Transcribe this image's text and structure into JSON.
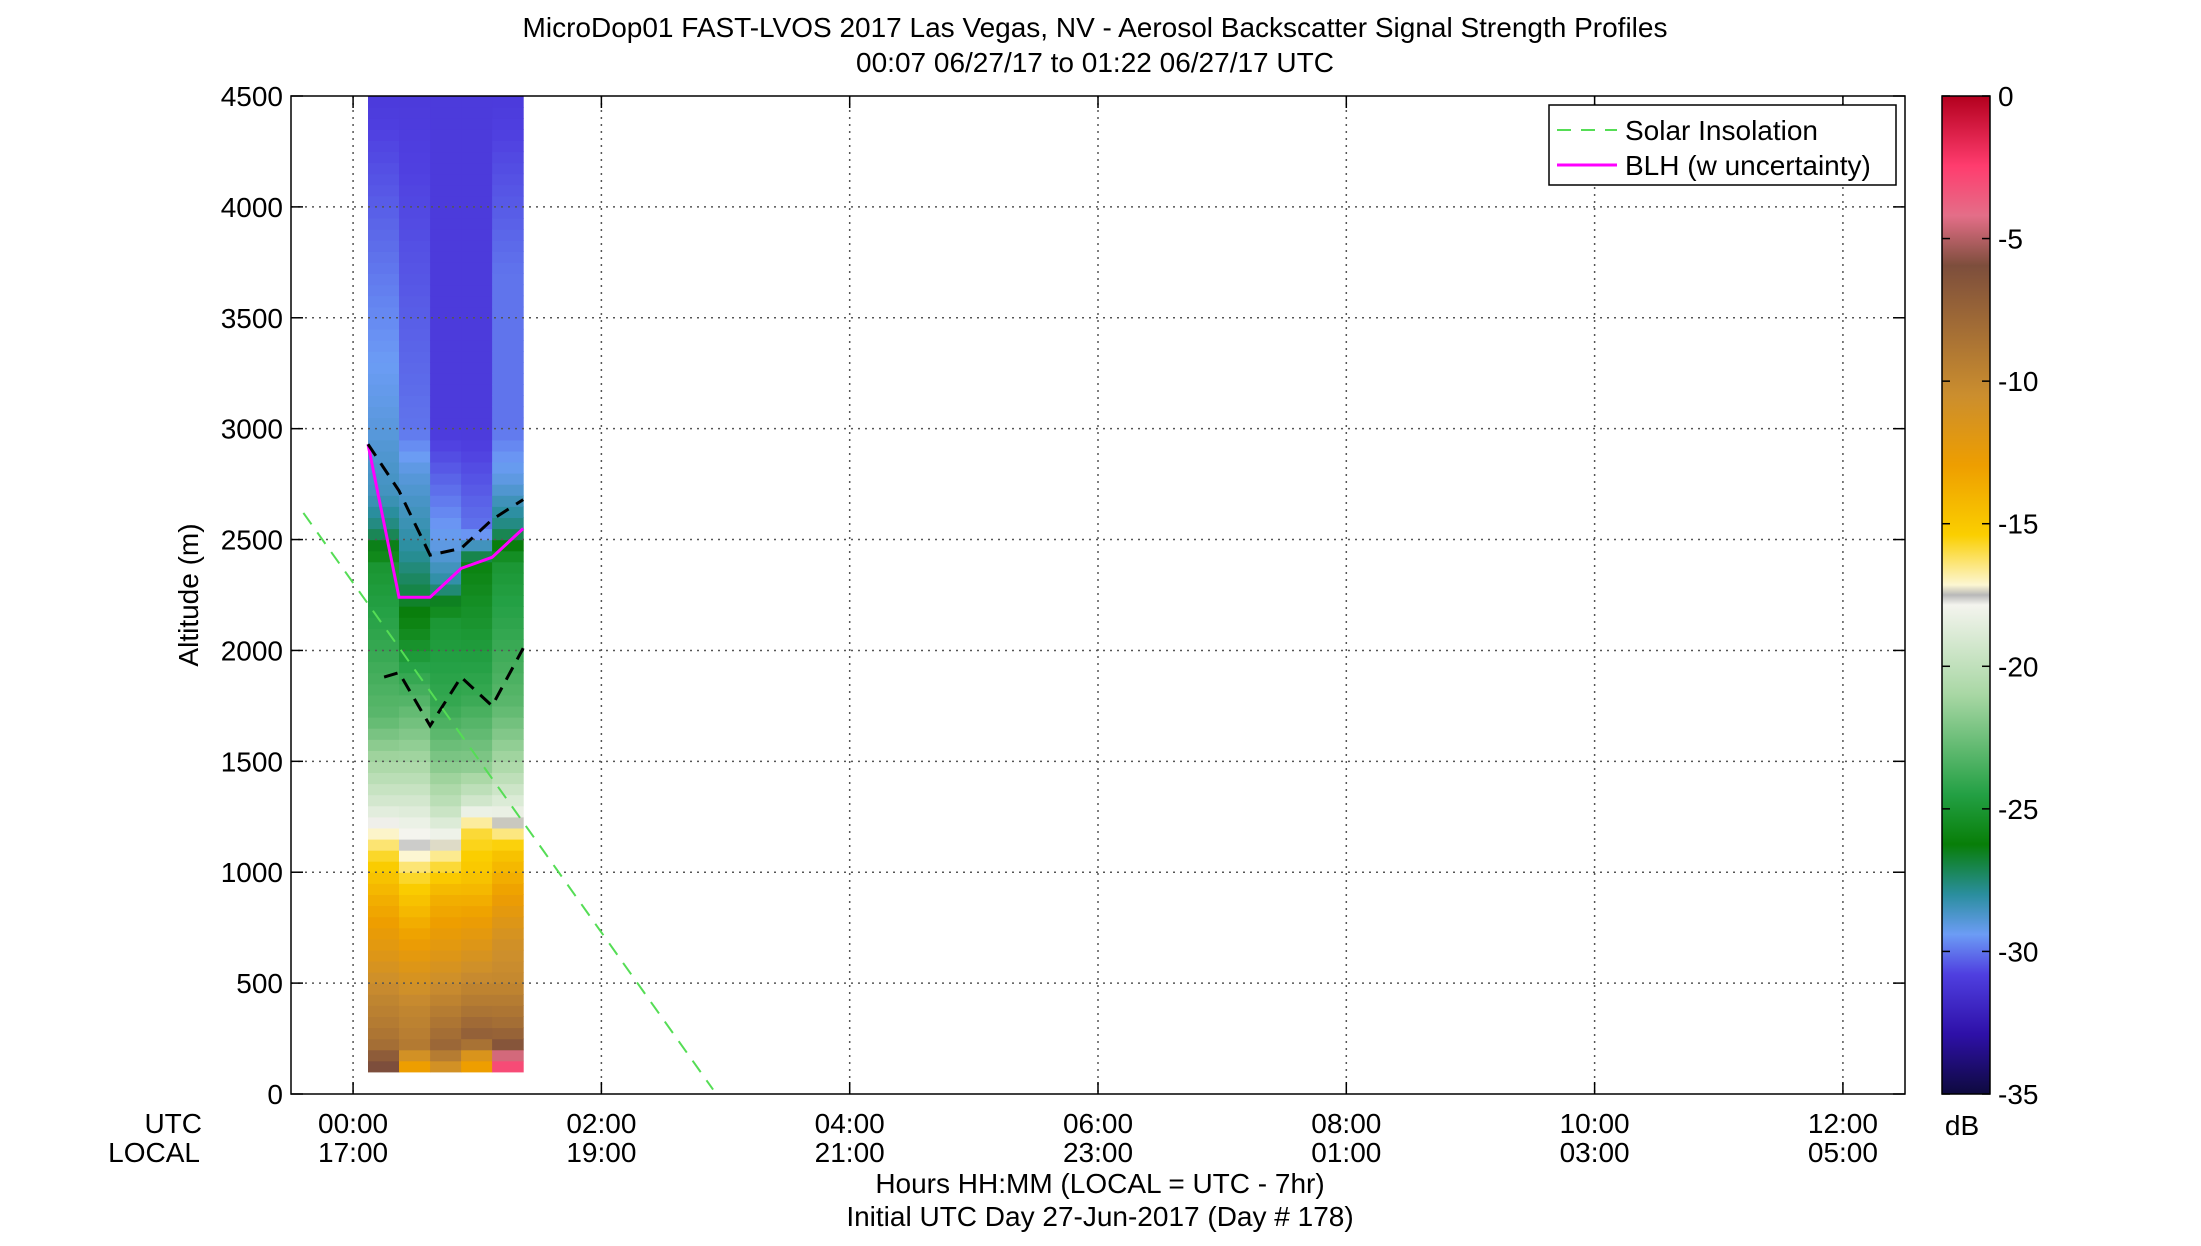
{
  "chart_data": {
    "type": "heatmap",
    "title": "MicroDop01 FAST-LVOS 2017 Las Vegas, NV - Aerosol Backscatter Signal Strength Profiles",
    "subtitle": "00:07 06/27/17 to 01:22 06/27/17  UTC",
    "ylabel": "Altitude (m)",
    "xlabel": "Hours HH:MM  (LOCAL = UTC - 7hr)",
    "xlabel2": "Initial UTC Day 27-Jun-2017 (Day # 178)",
    "row_label_utc": "UTC",
    "row_label_local": "LOCAL",
    "ylim": [
      0,
      4500
    ],
    "xlim_hours": [
      -0.5,
      12.5
    ],
    "y_ticks": [
      "0",
      "500",
      "1000",
      "1500",
      "2000",
      "2500",
      "3000",
      "3500",
      "4000",
      "4500"
    ],
    "y_tick_values": [
      0,
      500,
      1000,
      1500,
      2000,
      2500,
      3000,
      3500,
      4000,
      4500
    ],
    "x_tick_hours": [
      0,
      2,
      4,
      6,
      8,
      10,
      12
    ],
    "x_ticks_utc": [
      "00:00",
      "02:00",
      "04:00",
      "06:00",
      "08:00",
      "10:00",
      "12:00"
    ],
    "x_ticks_local": [
      "17:00",
      "19:00",
      "21:00",
      "23:00",
      "01:00",
      "03:00",
      "05:00"
    ],
    "grid": true,
    "legend": {
      "placement": "top-right",
      "entries": [
        "Solar Insolation",
        "BLH (w uncertainty)"
      ]
    },
    "colorbar": {
      "label": "dB",
      "range": [
        -35,
        0
      ],
      "ticks": [
        "0",
        "-5",
        "-10",
        "-15",
        "-20",
        "-25",
        "-30",
        "-35"
      ],
      "tick_values": [
        0,
        -5,
        -10,
        -15,
        -20,
        -25,
        -30,
        -35
      ]
    },
    "profiles": {
      "time_start_hours": [
        0.12,
        0.37,
        0.62,
        0.87,
        1.12
      ],
      "time_end_hours": [
        0.37,
        0.62,
        0.87,
        1.12,
        1.37
      ],
      "bottom_altitude": 100,
      "columns": [
        [
          [
            4500,
            -31
          ],
          [
            3000,
            -29
          ],
          [
            2700,
            -28.5
          ],
          [
            2550,
            -27.5
          ],
          [
            2380,
            -25
          ],
          [
            2000,
            -24
          ],
          [
            1700,
            -23
          ],
          [
            1500,
            -21
          ],
          [
            1300,
            -19
          ],
          [
            1100,
            -16
          ],
          [
            900,
            -14
          ],
          [
            650,
            -12
          ],
          [
            450,
            -10
          ],
          [
            300,
            -9
          ],
          [
            200,
            -8
          ],
          [
            150,
            -6
          ]
        ],
        [
          [
            4500,
            -31
          ],
          [
            3000,
            -30
          ],
          [
            2800,
            -29
          ],
          [
            2450,
            -28
          ],
          [
            2280,
            -27
          ],
          [
            2000,
            -25
          ],
          [
            1750,
            -23
          ],
          [
            1500,
            -21
          ],
          [
            1350,
            -19.5
          ],
          [
            1200,
            -18
          ],
          [
            1100,
            -17.6
          ],
          [
            1000,
            -16
          ],
          [
            800,
            -14
          ],
          [
            600,
            -12
          ],
          [
            400,
            -10
          ],
          [
            200,
            -9
          ],
          [
            150,
            -13
          ]
        ],
        [
          [
            4500,
            -31
          ],
          [
            3000,
            -31
          ],
          [
            2700,
            -30
          ],
          [
            2450,
            -29
          ],
          [
            2300,
            -28
          ],
          [
            2150,
            -25
          ],
          [
            1750,
            -24
          ],
          [
            1500,
            -22
          ],
          [
            1300,
            -20
          ],
          [
            1100,
            -17
          ],
          [
            900,
            -14
          ],
          [
            650,
            -12
          ],
          [
            450,
            -10
          ],
          [
            300,
            -8.5
          ],
          [
            200,
            -7.5
          ],
          [
            150,
            -11
          ]
        ],
        [
          [
            4500,
            -31
          ],
          [
            3000,
            -31
          ],
          [
            2550,
            -30
          ],
          [
            2450,
            -28
          ],
          [
            2400,
            -26
          ],
          [
            2100,
            -25
          ],
          [
            1800,
            -24
          ],
          [
            1500,
            -22
          ],
          [
            1300,
            -19
          ],
          [
            1200,
            -16
          ],
          [
            1000,
            -15
          ],
          [
            800,
            -13
          ],
          [
            600,
            -11
          ],
          [
            400,
            -9
          ],
          [
            250,
            -7
          ],
          [
            150,
            -13
          ]
        ],
        [
          [
            4500,
            -31
          ],
          [
            3700,
            -30
          ],
          [
            3000,
            -30
          ],
          [
            2750,
            -29
          ],
          [
            2550,
            -27.5
          ],
          [
            2400,
            -25
          ],
          [
            2050,
            -24
          ],
          [
            1750,
            -23
          ],
          [
            1500,
            -21
          ],
          [
            1250,
            -18
          ],
          [
            1100,
            -15
          ],
          [
            900,
            -13
          ],
          [
            700,
            -11
          ],
          [
            500,
            -10
          ],
          [
            300,
            -8
          ],
          [
            200,
            -6
          ],
          [
            150,
            -3
          ]
        ]
      ]
    },
    "series": [
      {
        "name": "BLH (w uncertainty)",
        "color": "#ff00ff",
        "x": [
          0.12,
          0.37,
          0.62,
          0.87,
          1.12,
          1.37
        ],
        "y": [
          2930,
          2240,
          2240,
          2370,
          2420,
          2550
        ]
      },
      {
        "name": "BLH upper uncertainty",
        "color": "#000000",
        "x": [
          0.12,
          0.37,
          0.62,
          0.87,
          1.12,
          1.37
        ],
        "y": [
          2930,
          2720,
          2430,
          2460,
          2590,
          2680
        ]
      },
      {
        "name": "BLH lower uncertainty",
        "color": "#000000",
        "x": [
          0.25,
          0.37,
          0.62,
          0.87,
          1.12,
          1.37
        ],
        "y": [
          1880,
          1900,
          1660,
          1880,
          1750,
          2010
        ]
      },
      {
        "name": "Solar Insolation",
        "color": "#55dd55",
        "x": [
          -0.4,
          2.9
        ],
        "y": [
          2620,
          20
        ]
      }
    ]
  }
}
